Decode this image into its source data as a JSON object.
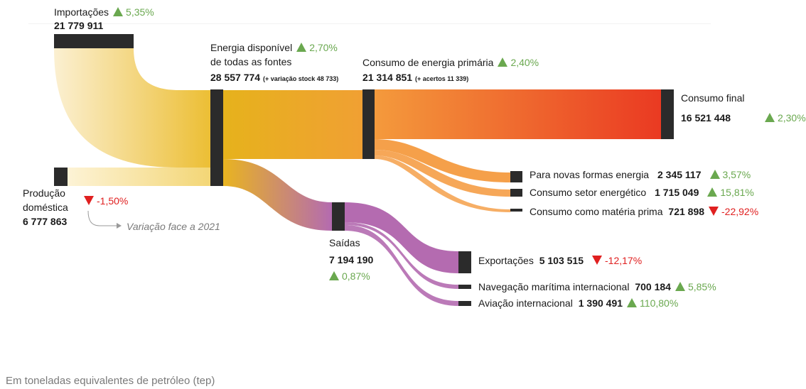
{
  "units_note": "Em toneladas equivalentes de petróleo (tep)",
  "variation_note": "Variação face a 2021",
  "nodes": {
    "importacoes": {
      "name": "Importações",
      "value": "21 779 911",
      "change": "5,35%",
      "direction": "up"
    },
    "producao": {
      "name_line1": "Produção",
      "name_line2": "doméstica",
      "value": "6 777 863",
      "change": "-1,50%",
      "direction": "down"
    },
    "disponivel": {
      "name_line1": "Energia disponível",
      "name_line2": "de todas as fontes",
      "value": "28 557 774",
      "extra": "(+ variação stock 48 733)",
      "change": "2,70%",
      "direction": "up"
    },
    "primaria": {
      "name": "Consumo de energia primária",
      "value": "21 314 851",
      "extra": "(+ acertos 11 339)",
      "change": "2,40%",
      "direction": "up"
    },
    "final": {
      "name": "Consumo final",
      "value": "16 521 448",
      "change": "2,30%",
      "direction": "up"
    },
    "novas": {
      "name": "Para novas formas energia",
      "value": "2 345 117",
      "change": "3,57%",
      "direction": "up"
    },
    "setor": {
      "name": "Consumo setor energético",
      "value": "1 715 049",
      "change": "15,81%",
      "direction": "up"
    },
    "materia": {
      "name": "Consumo como matéria prima",
      "value": "721 898",
      "change": "-22,92%",
      "direction": "down"
    },
    "saidas": {
      "name": "Saídas",
      "value": "7 194 190",
      "change": "0,87%",
      "direction": "up"
    },
    "exportacoes": {
      "name": "Exportações",
      "value": "5 103 515",
      "change": "-12,17%",
      "direction": "down"
    },
    "navegacao": {
      "name": "Navegação marítima internacional",
      "value": "700 184",
      "change": "5,85%",
      "direction": "up"
    },
    "aviacao": {
      "name": "Aviação internacional",
      "value": "1 390 491",
      "change": "110,80%",
      "direction": "up"
    }
  },
  "colors": {
    "node": "#2b2b2b",
    "flow_light": "#f6dfa0",
    "flow_gold": "#e9b420",
    "flow_orange": "#f39a3c",
    "flow_red": "#ea3b22",
    "flow_purple": "#b46bb0",
    "up": "#6aa84f",
    "down": "#e02020"
  }
}
